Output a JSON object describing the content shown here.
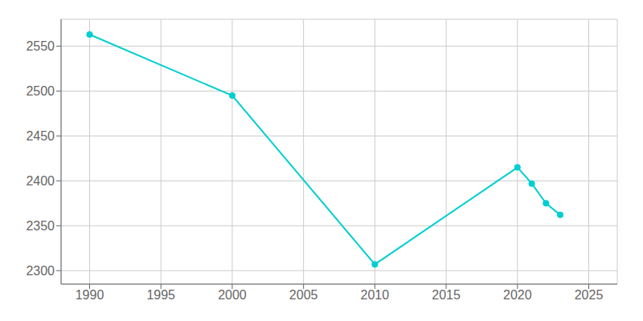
{
  "chart_data": {
    "type": "line",
    "x": [
      1990,
      2000,
      2010,
      2020,
      2021,
      2022,
      2023
    ],
    "values": [
      2563,
      2495,
      2307,
      2415,
      2397,
      2375,
      2362
    ],
    "color": "#00CED1",
    "marker": "circle",
    "xlim": [
      1988,
      2027
    ],
    "ylim": [
      2285,
      2580
    ],
    "xticks": [
      1990,
      1995,
      2000,
      2005,
      2010,
      2015,
      2020,
      2025
    ],
    "yticks": [
      2300,
      2350,
      2400,
      2450,
      2500,
      2550
    ],
    "grid": true
  }
}
